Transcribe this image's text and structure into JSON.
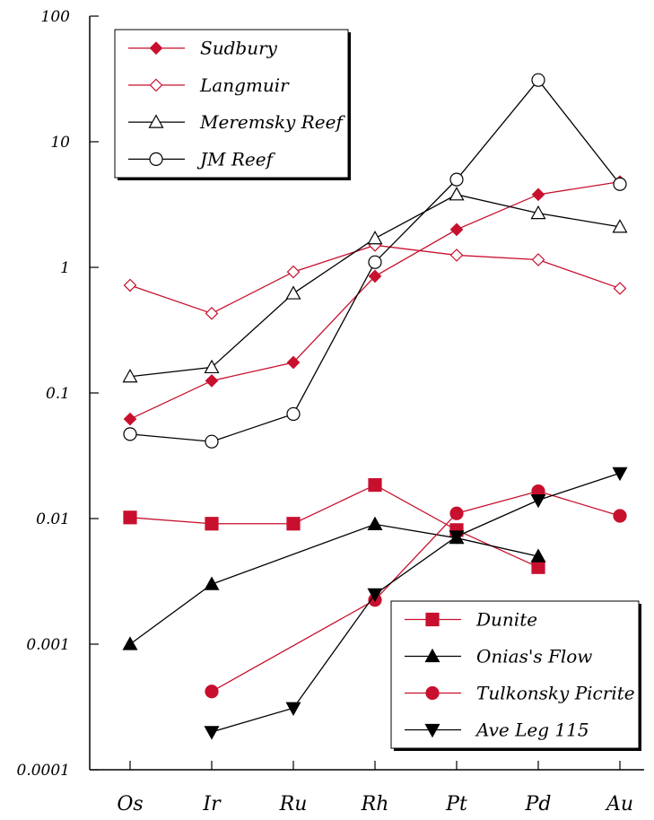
{
  "chart_data": {
    "type": "line",
    "yscale": "log",
    "ylim": [
      0.0001,
      100
    ],
    "yticks": [
      {
        "value": 100,
        "label": "100"
      },
      {
        "value": 10,
        "label": "10"
      },
      {
        "value": 1,
        "label": "1"
      },
      {
        "value": 0.1,
        "label": "0.1"
      },
      {
        "value": 0.01,
        "label": "0.01"
      },
      {
        "value": 0.001,
        "label": "0.001"
      },
      {
        "value": 0.0001,
        "label": "0.0001"
      }
    ],
    "categories": [
      "Os",
      "Ir",
      "Ru",
      "Rh",
      "Pt",
      "Pd",
      "Au"
    ],
    "grid": false,
    "legends": [
      {
        "placement": "top-left",
        "series": [
          "Sudbury",
          "Langmuir",
          "Meremsky Reef",
          "JM Reef"
        ]
      },
      {
        "placement": "bottom-right",
        "series": [
          "Dunite",
          "Onias's Flow",
          "Tulkonsky Picrite",
          "Ave Leg 115"
        ]
      }
    ],
    "series": [
      {
        "name": "Sudbury",
        "color": "#c8102e",
        "marker": "diamond-filled",
        "values": [
          0.062,
          0.125,
          0.175,
          0.85,
          2.0,
          3.8,
          4.8
        ]
      },
      {
        "name": "Langmuir",
        "color": "#c8102e",
        "marker": "diamond-open",
        "values": [
          0.72,
          0.43,
          0.92,
          1.5,
          1.25,
          1.15,
          0.68
        ]
      },
      {
        "name": "Meremsky Reef",
        "color": "#000000",
        "marker": "triangle-up-open",
        "values": [
          0.135,
          0.16,
          0.62,
          1.7,
          3.8,
          2.7,
          2.1
        ]
      },
      {
        "name": "JM Reef",
        "color": "#000000",
        "marker": "circle-open",
        "values": [
          0.047,
          0.041,
          0.068,
          1.1,
          5.0,
          31.0,
          4.6
        ]
      },
      {
        "name": "Dunite",
        "color": "#c8102e",
        "marker": "square-filled",
        "values": [
          0.0102,
          0.0091,
          0.0091,
          0.0185,
          0.0081,
          0.0041,
          null
        ]
      },
      {
        "name": "Onias's Flow",
        "color": "#000000",
        "marker": "triangle-up-filled",
        "values": [
          0.001,
          0.003,
          null,
          0.009,
          0.007,
          0.005,
          null
        ]
      },
      {
        "name": "Tulkonsky Picrite",
        "color": "#c8102e",
        "marker": "circle-filled",
        "values": [
          null,
          0.00042,
          null,
          0.00225,
          0.011,
          0.0165,
          0.0105
        ]
      },
      {
        "name": "Ave Leg 115",
        "color": "#000000",
        "marker": "triangle-down-filled",
        "values": [
          null,
          0.0002,
          0.00031,
          0.0025,
          0.0072,
          0.014,
          0.023
        ]
      }
    ]
  }
}
